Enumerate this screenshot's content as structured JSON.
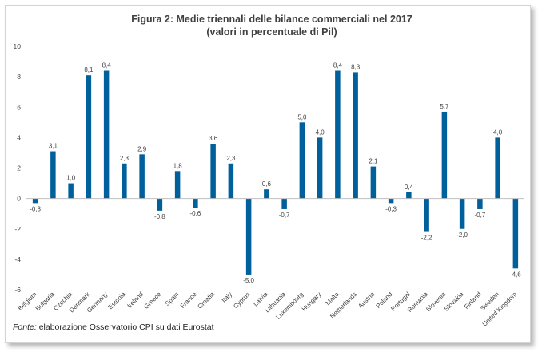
{
  "chart_data": {
    "type": "bar",
    "title": "Figura 2: Medie triennali delle bilance commerciali nel 2017",
    "subtitle": "(valori in percentuale di Pil)",
    "xlabel": "",
    "ylabel": "",
    "ylim": [
      -6,
      10
    ],
    "yticks": [
      "10",
      "8",
      "6",
      "4",
      "2",
      "0",
      "-2",
      "-4",
      "-6"
    ],
    "grid": false,
    "bar_color": "#00609c",
    "categories": [
      "Belgium",
      "Bulgaria",
      "Czechia",
      "Denmark",
      "Germany",
      "Estonia",
      "Ireland",
      "Greece",
      "Spain",
      "France",
      "Croatia",
      "Italy",
      "Cyprus",
      "Latvia",
      "Lithuania",
      "Luxembourg",
      "Hungary",
      "Malta",
      "Netherlands",
      "Austria",
      "Poland",
      "Portugal",
      "Romania",
      "Slovenia",
      "Slovakia",
      "Finland",
      "Sweden",
      "United Kingdom"
    ],
    "values": [
      -0.3,
      3.1,
      1.0,
      8.1,
      8.4,
      2.3,
      2.9,
      -0.8,
      1.8,
      -0.6,
      3.6,
      2.3,
      -5.0,
      0.6,
      -0.7,
      5.0,
      4.0,
      8.4,
      8.3,
      2.1,
      -0.3,
      0.4,
      -2.2,
      5.7,
      -2.0,
      -0.7,
      4.0,
      -4.6
    ],
    "data_labels": [
      "-0,3",
      "3,1",
      "1,0",
      "8,1",
      "8,4",
      "2,3",
      "2,9",
      "-0,8",
      "1,8",
      "-0,6",
      "3,6",
      "2,3",
      "-5,0",
      "0,6",
      "-0,7",
      "5,0",
      "4,0",
      "8,4",
      "8,3",
      "2,1",
      "-0,3",
      "0,4",
      "-2,2",
      "5,7",
      "-2,0",
      "-0,7",
      "4,0",
      "-4,6"
    ]
  },
  "source": {
    "label": "Fonte:",
    "text": " elaborazione Osservatorio CPI su dati Eurostat"
  }
}
